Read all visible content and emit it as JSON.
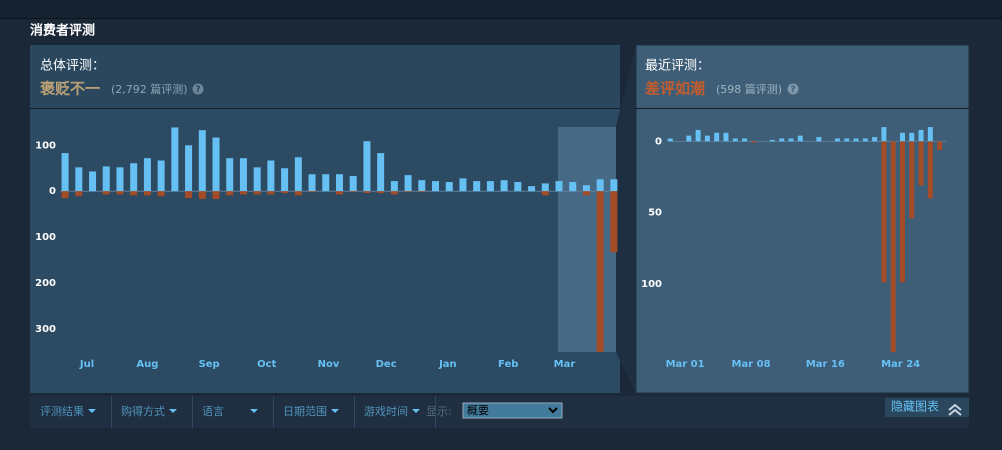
{
  "section_title": "消费者评测",
  "overall": {
    "label": "总体评测：",
    "rating": "褒贬不一",
    "count": "(2,792 篇评测)",
    "help": "?"
  },
  "recent": {
    "label": "最近评测：",
    "rating": "差评如潮",
    "count": "(598 篇评测)",
    "help": "?"
  },
  "filters": [
    "评测结果",
    "购得方式",
    "语言",
    "日期范围",
    "游戏时间"
  ],
  "display": {
    "label": "显示:",
    "value": "概要"
  },
  "hide_chart": "隐藏图表",
  "chart_data": [
    {
      "type": "bar",
      "x": [
        0,
        1,
        2,
        3,
        4,
        5,
        6,
        7,
        8,
        9,
        10,
        11,
        12,
        13,
        14,
        15,
        16,
        17,
        18,
        19,
        20,
        21,
        22,
        23,
        24,
        25,
        26,
        27,
        28,
        29,
        30,
        31,
        32,
        33,
        34,
        35,
        36,
        37,
        38,
        39,
        40
      ],
      "xlim": [
        -1.1,
        40.3
      ],
      "xticks": [
        {
          "value": 1.6,
          "label": "Jul"
        },
        {
          "value": 6.0,
          "label": "Aug"
        },
        {
          "value": 10.5,
          "label": "Sep"
        },
        {
          "value": 14.7,
          "label": "Oct"
        },
        {
          "value": 19.2,
          "label": "Nov"
        },
        {
          "value": 23.4,
          "label": "Dec"
        },
        {
          "value": 27.9,
          "label": "Jan"
        },
        {
          "value": 32.3,
          "label": "Feb"
        },
        {
          "value": 36.4,
          "label": "Mar"
        }
      ],
      "ylim": [
        -357,
        177
      ],
      "yticks": [
        100,
        0,
        {
          "value": -100,
          "label": "100"
        },
        {
          "value": -200,
          "label": "200"
        },
        {
          "value": -300,
          "label": "300"
        }
      ],
      "series": [
        {
          "color": "#66c0f4",
          "values": [
            83,
            52,
            43,
            54,
            52,
            61,
            72,
            67,
            139,
            100,
            133,
            117,
            72,
            72,
            52,
            67,
            50,
            74,
            37,
            37,
            37,
            33,
            109,
            83,
            22,
            35,
            24,
            22,
            20,
            28,
            22,
            22,
            24,
            20,
            11,
            17,
            22,
            20,
            13,
            26,
            26
          ]
        },
        {
          "color": "#a34c25",
          "values": [
            -15,
            -11,
            0,
            -7,
            -7,
            -9,
            -9,
            -11,
            0,
            -15,
            -17,
            -17,
            -9,
            -7,
            -7,
            -7,
            -4,
            -9,
            -2,
            0,
            -7,
            -2,
            -4,
            -4,
            -7,
            -2,
            -2,
            0,
            0,
            0,
            0,
            0,
            0,
            0,
            0,
            -9,
            0,
            0,
            -9,
            -350,
            -133
          ]
        }
      ]
    },
    {
      "type": "bar",
      "x": [
        0,
        1,
        2,
        3,
        4,
        5,
        6,
        7,
        8,
        9,
        10,
        11,
        12,
        13,
        14,
        15,
        16,
        17,
        18,
        19,
        20,
        21,
        22,
        23,
        24,
        25,
        26,
        27,
        28,
        29
      ],
      "xlim": [
        -1.1,
        29.9
      ],
      "xticks": [
        {
          "value": 1.6,
          "label": "Mar 01"
        },
        {
          "value": 8.7,
          "label": "Mar 08"
        },
        {
          "value": 16.7,
          "label": "Mar 16"
        },
        {
          "value": 24.8,
          "label": "Mar 24"
        }
      ],
      "ylim": [
        -150,
        22
      ],
      "yticks": [
        0,
        {
          "value": -50,
          "label": "50"
        },
        {
          "value": -100,
          "label": "100"
        }
      ],
      "series": [
        {
          "color": "#66c0f4",
          "values": [
            2,
            0,
            4,
            8,
            4,
            6,
            6,
            2,
            2,
            0,
            0,
            1,
            2,
            2,
            4,
            0,
            3,
            0,
            2,
            2,
            2,
            2,
            3,
            10,
            0,
            6,
            6,
            8,
            10,
            0
          ]
        },
        {
          "color": "#a34c25",
          "values": [
            0,
            0,
            0,
            0,
            0,
            0,
            0,
            0,
            0,
            -1,
            0,
            0,
            0,
            0,
            0,
            0,
            0,
            0,
            0,
            0,
            0,
            0,
            0,
            -99,
            -148,
            -99,
            -54,
            -31,
            -40,
            -6
          ]
        }
      ]
    }
  ]
}
